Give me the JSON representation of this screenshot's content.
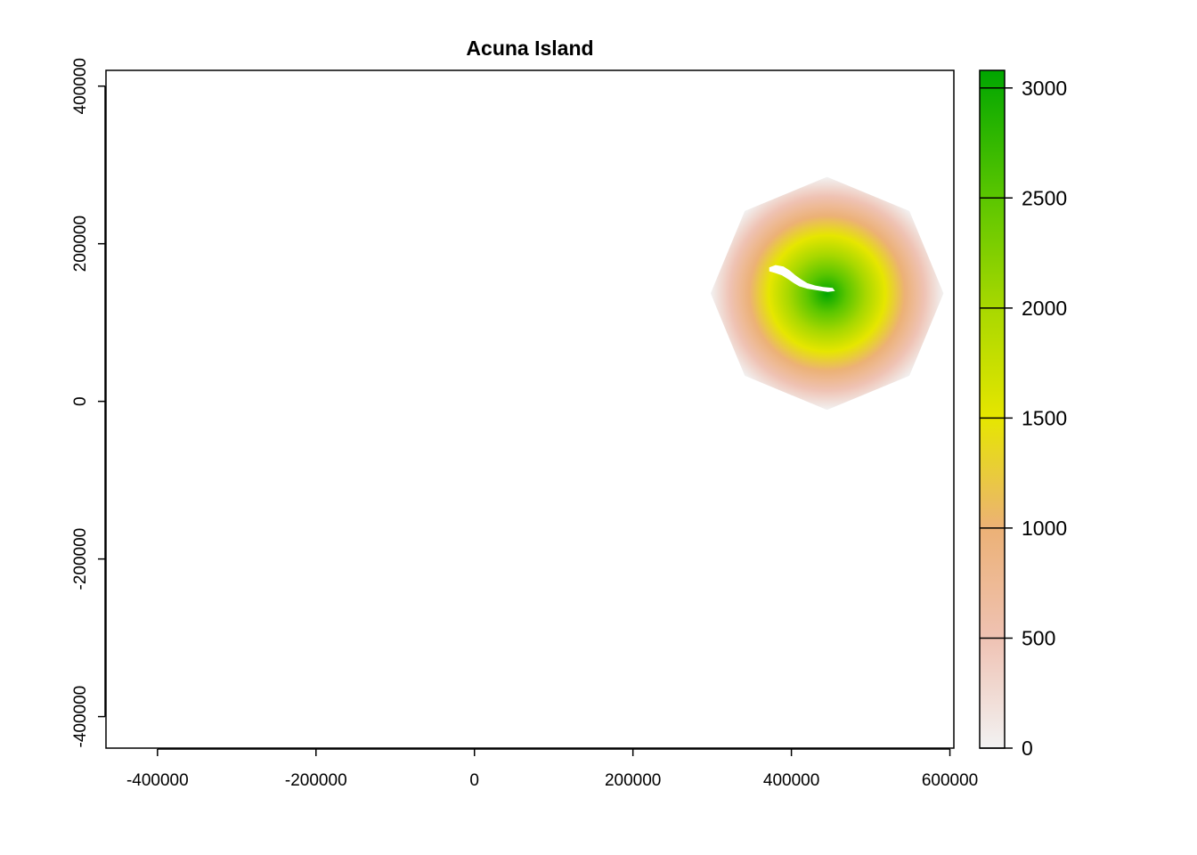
{
  "chart_data": {
    "type": "heatmap",
    "title": "Acuna Island",
    "xlabel": "",
    "ylabel": "",
    "xlim": [
      -465000,
      605000
    ],
    "ylim": [
      -440000,
      420000
    ],
    "x_ticks": [
      -400000,
      -200000,
      0,
      200000,
      400000,
      600000
    ],
    "x_tick_labels": [
      "-400000",
      "-200000",
      "0",
      "200000",
      "400000",
      "600000"
    ],
    "y_ticks": [
      -400000,
      -200000,
      0,
      200000,
      400000
    ],
    "y_tick_labels": [
      "-400000",
      "-200000",
      "0",
      "200000",
      "400000"
    ],
    "raster": {
      "shape": "octagon",
      "center": [
        445000,
        137000
      ],
      "radius": 147000,
      "value_at_center": 3000,
      "value_at_edge": 0
    },
    "island": {
      "outline": [
        [
          372000,
          170000
        ],
        [
          380000,
          173000
        ],
        [
          390000,
          171000
        ],
        [
          398000,
          166000
        ],
        [
          405000,
          160000
        ],
        [
          412000,
          155000
        ],
        [
          420000,
          150000
        ],
        [
          430000,
          147000
        ],
        [
          440000,
          145000
        ],
        [
          452000,
          144000
        ],
        [
          455000,
          140000
        ],
        [
          446000,
          139000
        ],
        [
          432000,
          141000
        ],
        [
          420000,
          143000
        ],
        [
          410000,
          146000
        ],
        [
          403000,
          150000
        ],
        [
          396000,
          155000
        ],
        [
          388000,
          160000
        ],
        [
          379000,
          163000
        ],
        [
          372000,
          165000
        ]
      ]
    },
    "legend": {
      "placement": "right",
      "min": 0,
      "max": 3080,
      "ticks": [
        0,
        500,
        1000,
        1500,
        2000,
        2500,
        3000
      ],
      "tick_labels": [
        "0",
        "500",
        "1000",
        "1500",
        "2000",
        "2500",
        "3000"
      ],
      "color_stops": [
        {
          "value": 0,
          "color": "#f2f2f2"
        },
        {
          "value": 500,
          "color": "#efc2b3"
        },
        {
          "value": 1000,
          "color": "#ecb176"
        },
        {
          "value": 1500,
          "color": "#e6e600"
        },
        {
          "value": 2000,
          "color": "#a8d800"
        },
        {
          "value": 2500,
          "color": "#5bc600"
        },
        {
          "value": 3080,
          "color": "#00a600"
        }
      ]
    },
    "grid": false
  }
}
